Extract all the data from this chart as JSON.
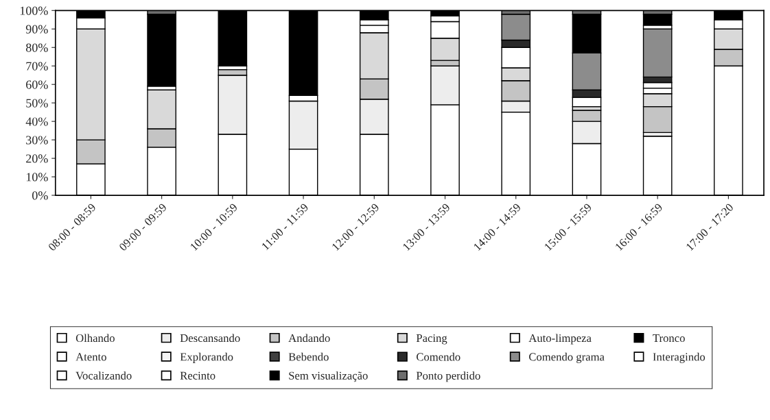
{
  "chart_data": {
    "type": "bar",
    "stacked": true,
    "categories": [
      "08:00 - 08:59",
      "09:00 - 09:59",
      "10:00 - 10:59",
      "11:00 - 11:59",
      "12:00 - 12:59",
      "13:00 - 13:59",
      "14:00 - 14:59",
      "15:00 - 15:59",
      "16:00 - 16:59",
      "17:00 - 17:20"
    ],
    "ylim": [
      0,
      100
    ],
    "yticks": [
      {
        "value": 0,
        "label": "0%"
      },
      {
        "value": 10,
        "label": "10%"
      },
      {
        "value": 20,
        "label": "20%"
      },
      {
        "value": 30,
        "label": "30%"
      },
      {
        "value": 40,
        "label": "40%"
      },
      {
        "value": 50,
        "label": "50%"
      },
      {
        "value": 60,
        "label": "60%"
      },
      {
        "value": 70,
        "label": "70%"
      },
      {
        "value": 80,
        "label": "80%"
      },
      {
        "value": 90,
        "label": "90%"
      },
      {
        "value": 100,
        "label": "100%"
      }
    ],
    "grid": false,
    "legend": "bottom",
    "series": [
      {
        "name": "Olhando",
        "color": "#ffffff",
        "values": [
          17,
          26,
          33,
          25,
          33,
          49,
          45,
          28,
          32,
          70
        ]
      },
      {
        "name": "Descansando",
        "color": "#ededed",
        "values": [
          0,
          0,
          32,
          26,
          19,
          21,
          6,
          12,
          2,
          0
        ]
      },
      {
        "name": "Andando",
        "color": "#c4c4c4",
        "values": [
          13,
          10,
          3,
          0,
          11,
          3,
          11,
          6,
          14,
          9
        ]
      },
      {
        "name": "Pacing",
        "color": "#d9d9d9",
        "values": [
          60,
          21,
          0,
          0,
          25,
          12,
          7,
          2,
          7,
          11
        ]
      },
      {
        "name": "Auto-limpeza",
        "color": "#ffffff",
        "values": [
          6,
          2,
          2,
          3,
          4,
          9,
          11,
          5,
          3,
          5
        ]
      },
      {
        "name": "Tronco",
        "color": "#000000",
        "values": [
          4,
          39,
          30,
          46,
          0,
          0,
          0,
          0,
          0,
          5
        ]
      },
      {
        "name": "Atento",
        "color": "#ffffff",
        "values": [
          0,
          0,
          0,
          0,
          0,
          0,
          0,
          0,
          3,
          0
        ]
      },
      {
        "name": "Explorando",
        "color": "#f4f4f4",
        "values": [
          0,
          0,
          0,
          0,
          0,
          0,
          0,
          0,
          0,
          0
        ]
      },
      {
        "name": "Bebendo",
        "color": "#404040",
        "values": [
          0,
          0,
          0,
          0,
          0,
          0,
          0,
          0,
          0,
          0
        ]
      },
      {
        "name": "Comendo",
        "color": "#2a2a2a",
        "values": [
          0,
          0,
          0,
          0,
          0,
          0,
          4,
          4,
          3,
          0
        ]
      },
      {
        "name": "Comendo grama",
        "color": "#8c8c8c",
        "values": [
          0,
          0,
          0,
          0,
          0,
          0,
          14,
          20,
          26,
          0
        ]
      },
      {
        "name": "Interagindo",
        "color": "#ffffff",
        "values": [
          0,
          0,
          0,
          0,
          3,
          3,
          0,
          0,
          2,
          0
        ]
      },
      {
        "name": "Vocalizando",
        "color": "#ffffff",
        "values": [
          0,
          0,
          0,
          0,
          0,
          0,
          0,
          0,
          0,
          0
        ]
      },
      {
        "name": "Recinto",
        "color": "#ffffff",
        "values": [
          0,
          0,
          0,
          0,
          0,
          0,
          0,
          0,
          0,
          0
        ]
      },
      {
        "name": "Sem visualização",
        "color": "#000000",
        "values": [
          0,
          0,
          0,
          0,
          5,
          3,
          0,
          21,
          6,
          0
        ]
      },
      {
        "name": "Ponto perdido",
        "color": "#6e6e6e",
        "values": [
          0,
          2,
          0,
          0,
          0,
          0,
          2,
          2,
          2,
          0
        ]
      }
    ]
  }
}
